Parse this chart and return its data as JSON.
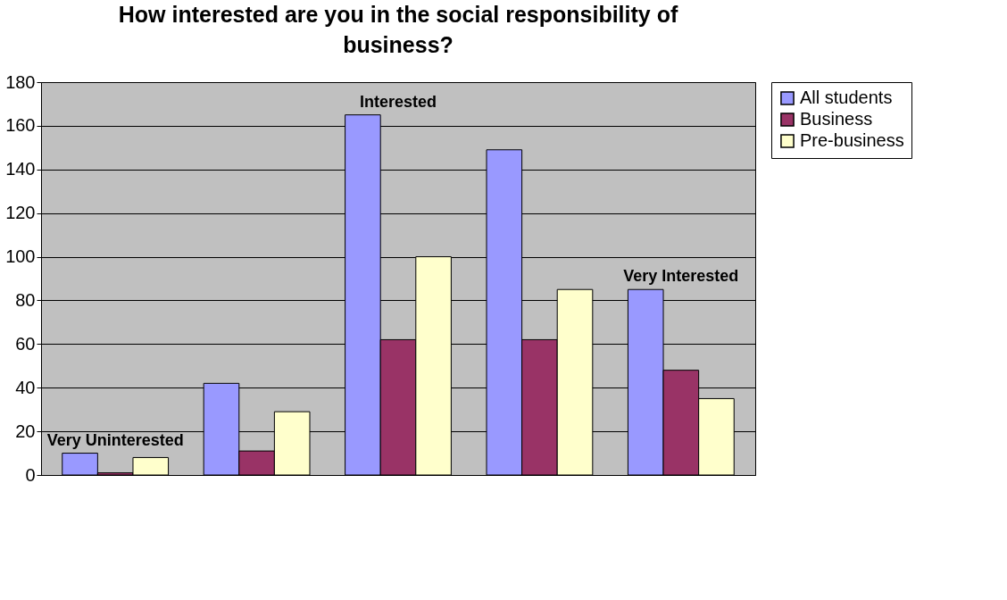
{
  "chart_data": {
    "type": "bar",
    "title": "How interested are you in the social responsibility of business?",
    "categories": [
      null,
      null,
      null,
      null,
      null
    ],
    "series": [
      {
        "name": "All students",
        "color": "#9999ff",
        "values": [
          10,
          42,
          165,
          149,
          85
        ]
      },
      {
        "name": "Business",
        "color": "#993366",
        "values": [
          1,
          11,
          62,
          62,
          48
        ]
      },
      {
        "name": "Pre-business",
        "color": "#ffffcc",
        "values": [
          8,
          29,
          100,
          85,
          35
        ]
      }
    ],
    "ylim": [
      0,
      180
    ],
    "yticks": [
      0,
      20,
      40,
      60,
      80,
      100,
      120,
      140,
      160,
      180
    ],
    "grid": "y",
    "legend": "right",
    "tick_labels": "y",
    "annotations": [
      "Very Uninterested",
      "Interested",
      "Very Interested"
    ]
  }
}
